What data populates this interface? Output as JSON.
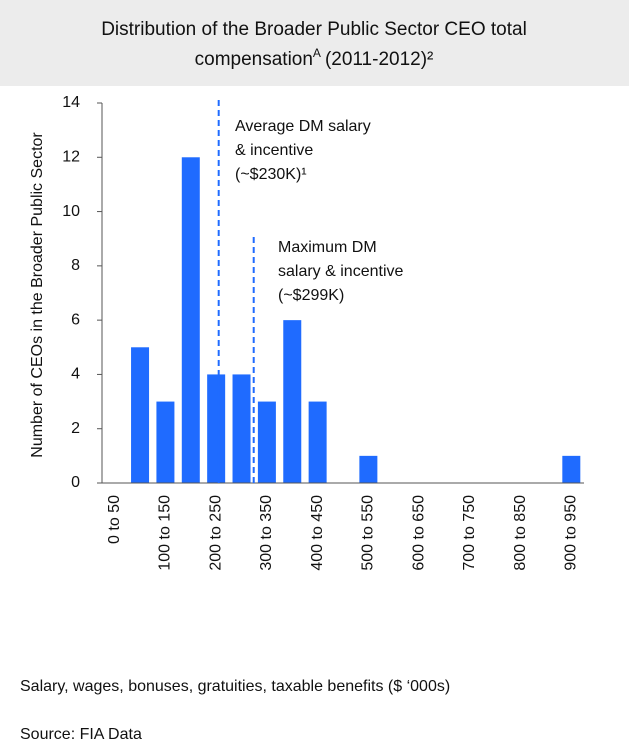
{
  "chart_data": {
    "type": "bar",
    "title": "Distribution of the Broader Public Sector CEO total",
    "title_line2": "compensation",
    "title_note": "A",
    "title_years": "(2011-2012)²",
    "categories": [
      "0 to 50",
      null,
      "100 to 150",
      null,
      "200 to 250",
      null,
      "300 to 350",
      null,
      "400 to 450",
      null,
      "500 to 550",
      null,
      "600 to 650",
      null,
      "700 to 750",
      null,
      "800 to 850",
      null,
      "900 to 950"
    ],
    "values": [
      0,
      5,
      3,
      12,
      4,
      4,
      3,
      6,
      3,
      0,
      1,
      0,
      0,
      0,
      0,
      0,
      0,
      0,
      1
    ],
    "color": "#1f6bff",
    "bin_width": 50,
    "ylim": [
      0,
      14
    ],
    "yticks": [
      0,
      2,
      4,
      6,
      8,
      10,
      12,
      14
    ],
    "y_label": "Number of CEOs in the Broader Public Sector",
    "x_label": "Salary, wages, bonuses, gratuities, taxable benefits ($ ‘000s)",
    "source": "Source: FIA Data",
    "reference_lines": [
      {
        "value": 230,
        "lines": [
          "Average DM salary",
          "& incentive",
          "(~$230K)¹"
        ]
      },
      {
        "value": 299,
        "lines": [
          "Maximum DM",
          "salary & incentive",
          "(~$299K)"
        ]
      }
    ]
  }
}
